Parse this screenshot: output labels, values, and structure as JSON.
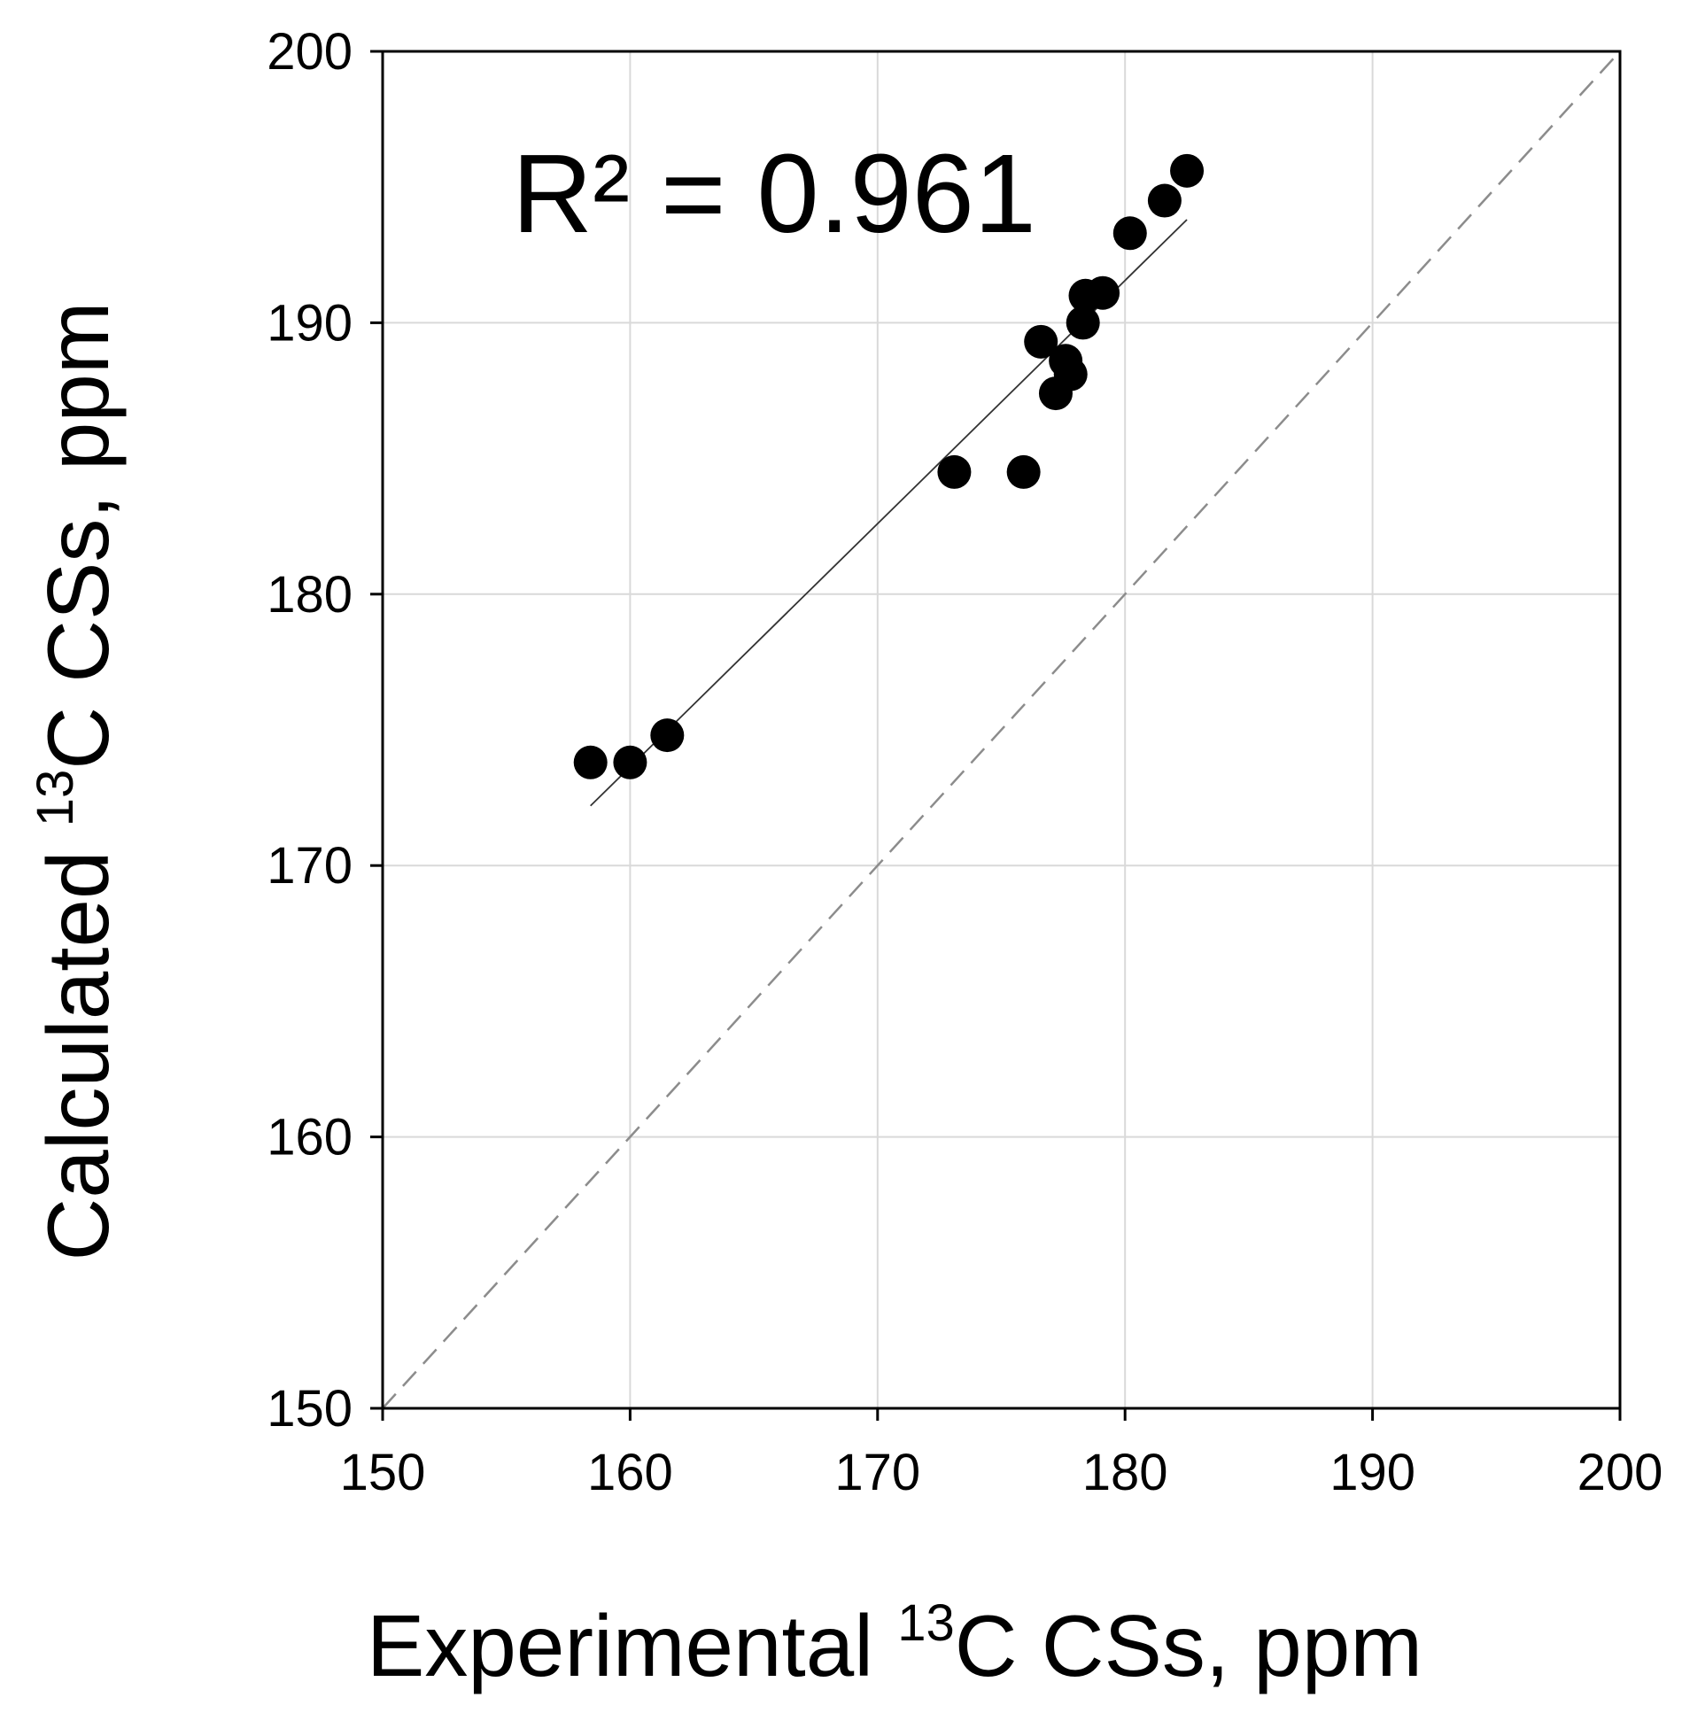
{
  "chart_data": {
    "type": "scatter",
    "x_label": {
      "prefix": "Experimental ",
      "sup": "13",
      "suffix": "C CSs, ppm"
    },
    "y_label": {
      "prefix": "Calculated ",
      "sup": "13",
      "suffix": "C CSs, ppm"
    },
    "xlim": [
      150,
      200
    ],
    "ylim": [
      150,
      200
    ],
    "xticks": [
      150,
      160,
      170,
      180,
      190,
      200
    ],
    "yticks": [
      150,
      160,
      170,
      180,
      190,
      200
    ],
    "grid": true,
    "annotation": "R² = 0.961",
    "series": [
      {
        "name": "points",
        "x": [
          158.4,
          160.0,
          161.5,
          173.1,
          175.9,
          176.6,
          177.2,
          177.6,
          177.8,
          178.3,
          178.4,
          179.1,
          180.2,
          181.6,
          182.5
        ],
        "y": [
          173.8,
          173.8,
          174.8,
          184.5,
          184.5,
          189.3,
          187.4,
          188.6,
          188.1,
          190.0,
          191.0,
          191.1,
          193.3,
          194.5,
          195.6
        ]
      }
    ],
    "trendline": {
      "x": [
        158.4,
        182.5
      ],
      "y": [
        172.2,
        193.8
      ]
    },
    "reference_line": {
      "x": [
        150,
        200
      ],
      "y": [
        150,
        200
      ]
    }
  }
}
